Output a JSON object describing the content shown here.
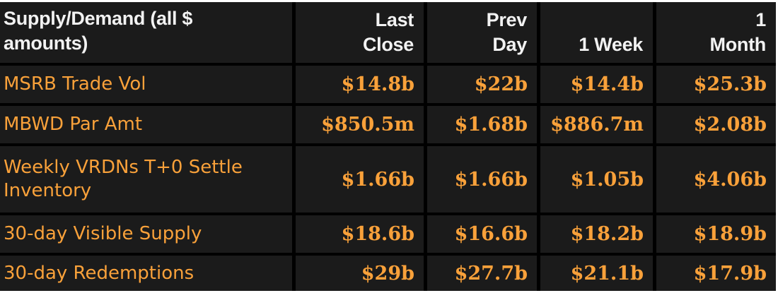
{
  "chart_data": {
    "type": "table",
    "title": "Supply/Demand (all $ amounts)",
    "columns": [
      "Last Close",
      "Prev Day",
      "1 Week",
      "1 Month"
    ],
    "rows": [
      {
        "label": "MSRB Trade Vol",
        "values": [
          "$14.8b",
          "$22b",
          "$14.4b",
          "$25.3b"
        ]
      },
      {
        "label": "MBWD Par Amt",
        "values": [
          "$850.5m",
          "$1.68b",
          "$886.7m",
          "$2.08b"
        ]
      },
      {
        "label": "Weekly VRDNs T+0 Settle Inventory",
        "values": [
          "$1.66b",
          "$1.66b",
          "$1.05b",
          "$4.06b"
        ]
      },
      {
        "label": "30-day Visible Supply",
        "values": [
          "$18.6b",
          "$16.6b",
          "$18.2b",
          "$18.9b"
        ]
      },
      {
        "label": "30-day Redemptions",
        "values": [
          "$29b",
          "$27.7b",
          "$21.1b",
          "$17.9b"
        ]
      }
    ]
  },
  "display": {
    "header": {
      "col0": "Supply/Demand (all $\namounts)",
      "col1": "Last\nClose",
      "col2": "Prev\nDay",
      "col3": "1 Week",
      "col4": "1\nMonth"
    }
  },
  "colors": {
    "page_background": "#ffffff",
    "cell_background": "#1b1b1b",
    "grid_line": "#000000",
    "header_text": "#f2f2f2",
    "amber_text": "#f9a13a"
  }
}
